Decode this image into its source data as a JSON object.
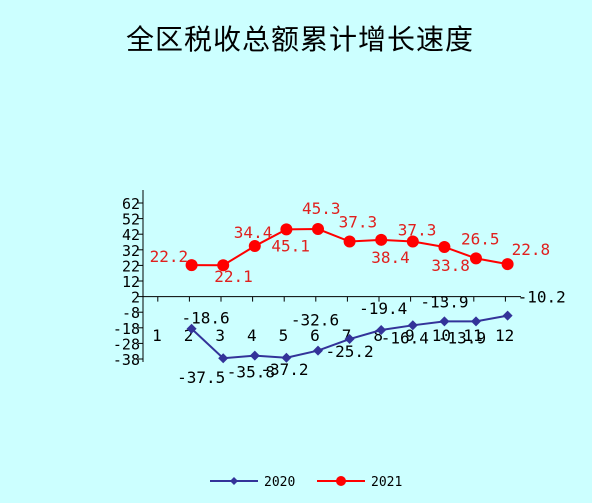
{
  "chart_data": {
    "type": "line",
    "title": "全区税收总额累计增长速度",
    "categories": [
      "1",
      "2",
      "3",
      "4",
      "5",
      "6",
      "7",
      "8",
      "9",
      "10",
      "11",
      "12"
    ],
    "y_ticks": [
      "62",
      "52",
      "42",
      "32",
      "22",
      "12",
      "2",
      "-8",
      "-18",
      "-28",
      "-38"
    ],
    "ylim": [
      -38,
      62
    ],
    "series": [
      {
        "name": "2020",
        "color": "#333399",
        "marker": "diamond",
        "values": [
          null,
          -18.6,
          -37.5,
          -35.8,
          -37.2,
          -32.6,
          -25.2,
          -19.4,
          -16.4,
          -13.9,
          -13.9,
          -10.2
        ],
        "labels": [
          "",
          "-18.6",
          "-37.5",
          "-35.8",
          "-37.2",
          "-32.6",
          "-25.2",
          "-19.4",
          "-16.4",
          "-13.9",
          "-13.9",
          "-10.2"
        ]
      },
      {
        "name": "2021",
        "color": "#ff0000",
        "marker": "circle",
        "values": [
          null,
          22.2,
          22.1,
          34.4,
          45.1,
          45.3,
          37.3,
          38.4,
          37.3,
          33.8,
          26.5,
          22.8
        ],
        "labels": [
          "",
          "22.2",
          "22.1",
          "34.4",
          "45.1",
          "45.3",
          "37.3",
          "38.4",
          "37.3",
          "33.8",
          "26.5",
          "22.8"
        ]
      }
    ],
    "legend": {
      "position": "bottom",
      "entries": [
        "2020",
        "2021"
      ]
    },
    "grid": false
  }
}
